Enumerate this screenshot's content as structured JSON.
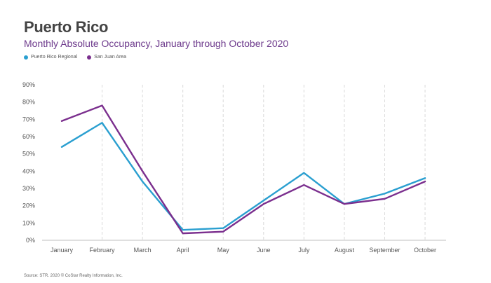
{
  "title": "Puerto Rico",
  "subtitle": "Monthly Absolute Occupancy, January through October 2020",
  "source": "Source: STR. 2020 © CoStar Realty Information, Inc.",
  "colors": {
    "regional": "#2a9fd0",
    "sanjuan": "#7b2f8e"
  },
  "chart_data": {
    "type": "line",
    "categories": [
      "January",
      "February",
      "March",
      "April",
      "May",
      "June",
      "July",
      "August",
      "September",
      "October"
    ],
    "series": [
      {
        "name": "Puerto Rico Regional",
        "values": [
          54,
          68,
          34,
          6,
          7,
          23,
          39,
          21,
          27,
          36
        ]
      },
      {
        "name": "San Juan Area",
        "values": [
          69,
          78,
          40,
          4,
          5,
          21,
          32,
          21,
          24,
          34
        ]
      }
    ],
    "y_ticks": [
      "0%",
      "10%",
      "20%",
      "30%",
      "40%",
      "50%",
      "60%",
      "70%",
      "80%",
      "90%"
    ],
    "ylim": [
      0,
      90
    ],
    "legend": "top-left",
    "grid": "vertical-dashed"
  }
}
